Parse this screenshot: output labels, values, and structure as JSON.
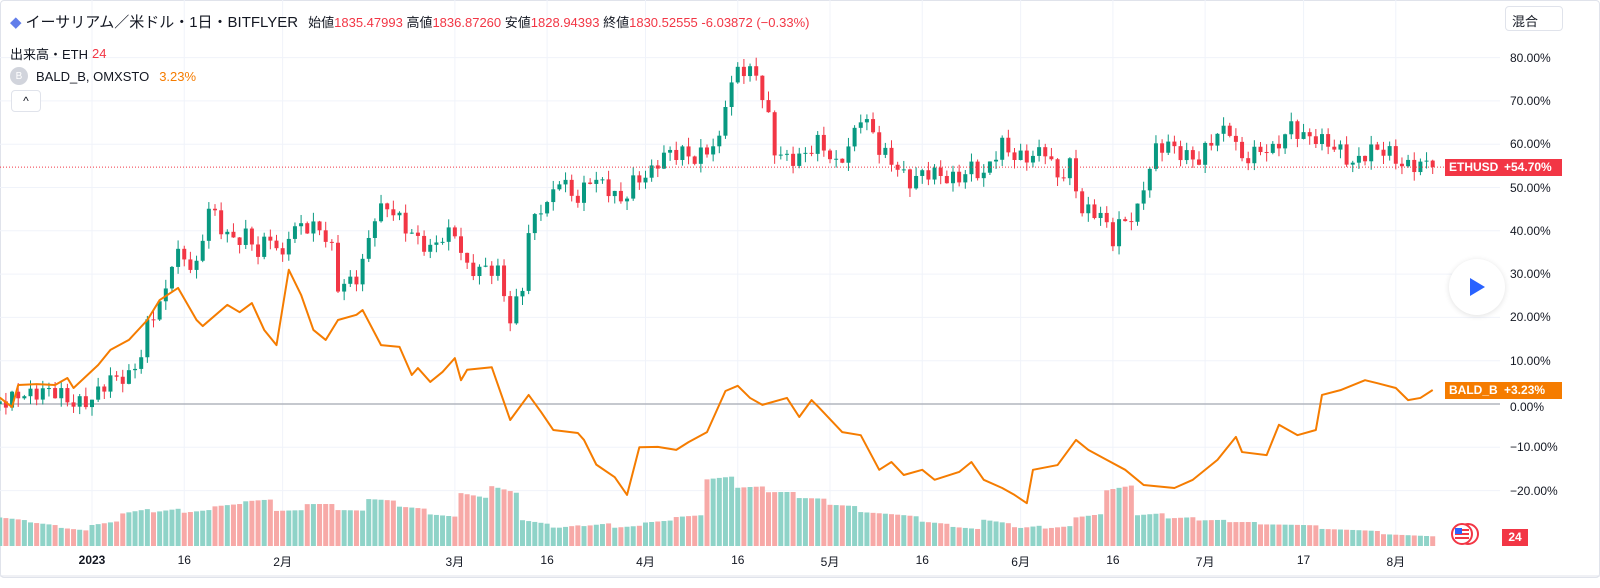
{
  "header": {
    "symbol_title": "イーサリアム／米ドル・1日・BITFLYER",
    "open_label": "始値",
    "open": "1835.47993",
    "high_label": "高値",
    "high": "1836.87260",
    "low_label": "安値",
    "low": "1828.94393",
    "close_label": "終値",
    "close": "1830.52555",
    "change": "-6.03872 (−0.33%)",
    "volume_label": "出来高・ETH",
    "volume_value": "24",
    "compare_badge": "B",
    "compare_symbol": "BALD_B, OMXSTO",
    "compare_value": "3.23%",
    "collapse_icon": "^"
  },
  "toolbar": {
    "mix_label": "混合"
  },
  "tags": {
    "eth_name": "ETHUSD",
    "eth_value": "+54.70%",
    "bald_name": "BALD_B",
    "bald_value": "+3.23%",
    "volume_tag": "24"
  },
  "colors": {
    "up": "#089981",
    "down": "#f23645",
    "compare": "#f57c00",
    "vol_up": "#8fd3c8",
    "vol_down": "#f7a9a7"
  },
  "chart_data": {
    "type": "line",
    "title": "イーサリアム／米ドル・1日・BITFLYER vs BALD_B",
    "ylabel": "%",
    "ylim": [
      -30,
      85
    ],
    "y_ticks": [
      "80.00%",
      "70.00%",
      "60.00%",
      "50.00%",
      "40.00%",
      "30.00%",
      "20.00%",
      "10.00%",
      "0.00%",
      "−10.00%",
      "−20.00%"
    ],
    "x_unit": "days since 2023-01-01",
    "x_ticks": [
      {
        "day": 0,
        "label": "2023"
      },
      {
        "day": 15,
        "label": "16"
      },
      {
        "day": 31,
        "label": "2月"
      },
      {
        "day": 59,
        "label": "3月"
      },
      {
        "day": 74,
        "label": "16"
      },
      {
        "day": 90,
        "label": "4月"
      },
      {
        "day": 105,
        "label": "16"
      },
      {
        "day": 120,
        "label": "5月"
      },
      {
        "day": 135,
        "label": "16"
      },
      {
        "day": 151,
        "label": "6月"
      },
      {
        "day": 166,
        "label": "16"
      },
      {
        "day": 181,
        "label": "7月"
      },
      {
        "day": 197,
        "label": "17"
      },
      {
        "day": 212,
        "label": "8月"
      }
    ],
    "series": [
      {
        "name": "ETHUSD",
        "type": "candlestick",
        "points": [
          [
            -14,
            0
          ],
          [
            -12,
            3
          ],
          [
            -5,
            2
          ],
          [
            -4,
            1
          ],
          [
            0,
            1
          ],
          [
            3,
            5
          ],
          [
            6,
            7
          ],
          [
            8,
            12
          ],
          [
            9,
            18
          ],
          [
            12,
            25
          ],
          [
            13,
            33
          ],
          [
            14,
            35
          ],
          [
            17,
            32
          ],
          [
            19,
            45
          ],
          [
            21,
            40
          ],
          [
            23,
            38
          ],
          [
            25,
            40
          ],
          [
            27,
            35
          ],
          [
            29,
            38
          ],
          [
            31,
            33
          ],
          [
            32,
            40
          ],
          [
            34,
            42
          ],
          [
            37,
            40
          ],
          [
            39,
            35
          ],
          [
            40,
            27
          ],
          [
            43,
            30
          ],
          [
            44,
            33
          ],
          [
            46,
            43
          ],
          [
            48,
            45
          ],
          [
            50,
            43
          ],
          [
            52,
            40
          ],
          [
            55,
            35
          ],
          [
            57,
            38
          ],
          [
            59,
            40
          ],
          [
            61,
            32
          ],
          [
            63,
            31
          ],
          [
            66,
            30
          ],
          [
            67,
            25
          ],
          [
            68,
            20
          ],
          [
            70,
            28
          ],
          [
            71,
            40
          ],
          [
            73,
            45
          ],
          [
            74,
            45
          ],
          [
            76,
            52
          ],
          [
            79,
            48
          ],
          [
            81,
            52
          ],
          [
            83,
            50
          ],
          [
            86,
            47
          ],
          [
            88,
            52
          ],
          [
            91,
            53
          ],
          [
            93,
            57
          ],
          [
            96,
            59
          ],
          [
            98,
            57
          ],
          [
            100,
            58
          ],
          [
            102,
            60
          ],
          [
            103,
            70
          ],
          [
            105,
            78
          ],
          [
            106,
            78
          ],
          [
            108,
            76
          ],
          [
            110,
            65
          ],
          [
            111,
            58
          ],
          [
            113,
            57
          ],
          [
            116,
            58
          ],
          [
            118,
            60
          ],
          [
            121,
            55
          ],
          [
            123,
            60
          ],
          [
            125,
            67
          ],
          [
            127,
            62
          ],
          [
            128,
            58
          ],
          [
            131,
            55
          ],
          [
            133,
            52
          ],
          [
            135,
            53
          ],
          [
            139,
            52
          ],
          [
            141,
            53
          ],
          [
            143,
            55
          ],
          [
            145,
            52
          ],
          [
            148,
            60
          ],
          [
            150,
            58
          ],
          [
            153,
            57
          ],
          [
            155,
            58
          ],
          [
            157,
            52
          ],
          [
            159,
            56
          ],
          [
            161,
            45
          ],
          [
            164,
            43
          ],
          [
            166,
            38
          ],
          [
            167,
            42
          ],
          [
            170,
            45
          ],
          [
            171,
            50
          ],
          [
            173,
            58
          ],
          [
            175,
            60
          ],
          [
            178,
            58
          ],
          [
            180,
            56
          ],
          [
            183,
            62
          ],
          [
            185,
            64
          ],
          [
            187,
            57
          ],
          [
            190,
            58
          ],
          [
            192,
            58
          ],
          [
            195,
            65
          ],
          [
            197,
            62
          ],
          [
            200,
            60
          ],
          [
            203,
            59
          ],
          [
            205,
            56
          ],
          [
            208,
            58
          ],
          [
            211,
            58
          ],
          [
            213,
            56
          ],
          [
            216,
            55
          ],
          [
            218,
            54.7
          ]
        ]
      },
      {
        "name": "BALD_B",
        "type": "line",
        "points": [
          [
            -15,
            1.5
          ],
          [
            -13,
            -0.7
          ],
          [
            -12,
            4.4
          ],
          [
            -9,
            4.6
          ],
          [
            -6,
            4.4
          ],
          [
            -4,
            6
          ],
          [
            -3,
            3.7
          ],
          [
            1,
            9
          ],
          [
            3,
            12.5
          ],
          [
            6,
            14.8
          ],
          [
            9,
            19.4
          ],
          [
            11,
            24
          ],
          [
            14,
            26.8
          ],
          [
            17,
            19.4
          ],
          [
            18,
            18
          ],
          [
            22,
            22.9
          ],
          [
            24,
            21.2
          ],
          [
            26,
            23.3
          ],
          [
            28,
            17.1
          ],
          [
            30,
            13.6
          ],
          [
            32,
            31
          ],
          [
            34,
            25.2
          ],
          [
            36,
            17.1
          ],
          [
            38,
            14.8
          ],
          [
            40,
            19.4
          ],
          [
            43,
            20.6
          ],
          [
            44,
            21.7
          ],
          [
            47,
            13.6
          ],
          [
            50,
            13.2
          ],
          [
            52,
            6.7
          ],
          [
            53,
            8.3
          ],
          [
            55,
            5.1
          ],
          [
            57,
            7.4
          ],
          [
            59,
            10.6
          ],
          [
            60,
            5.5
          ],
          [
            61,
            7.9
          ],
          [
            65,
            8.5
          ],
          [
            68,
            -3.7
          ],
          [
            71,
            2.1
          ],
          [
            73,
            -1.8
          ],
          [
            75,
            -6
          ],
          [
            79,
            -6.7
          ],
          [
            80,
            -8.3
          ],
          [
            82,
            -14
          ],
          [
            85,
            -16.9
          ],
          [
            87,
            -21
          ],
          [
            89,
            -10
          ],
          [
            92,
            -9.9
          ],
          [
            95,
            -10.6
          ],
          [
            97,
            -8.8
          ],
          [
            100,
            -6.5
          ],
          [
            103,
            3
          ],
          [
            105,
            4.2
          ],
          [
            107,
            1.4
          ],
          [
            109,
            -0.2
          ],
          [
            113,
            1.4
          ],
          [
            115,
            -3
          ],
          [
            117,
            0.9
          ],
          [
            118,
            -0.5
          ],
          [
            122,
            -6.5
          ],
          [
            125,
            -7.2
          ],
          [
            128,
            -15.2
          ],
          [
            130,
            -13.4
          ],
          [
            132,
            -16.4
          ],
          [
            135,
            -15.2
          ],
          [
            137,
            -17.5
          ],
          [
            141,
            -15.7
          ],
          [
            143,
            -13.4
          ],
          [
            145,
            -17.5
          ],
          [
            148,
            -19.4
          ],
          [
            150,
            -21
          ],
          [
            152,
            -22.9
          ],
          [
            153,
            -15.2
          ],
          [
            157,
            -14.1
          ],
          [
            160,
            -8.3
          ],
          [
            162,
            -10.6
          ],
          [
            165,
            -12.9
          ],
          [
            168,
            -15.2
          ],
          [
            171,
            -18.7
          ],
          [
            176,
            -19.4
          ],
          [
            179,
            -17.5
          ],
          [
            183,
            -12.9
          ],
          [
            186,
            -7.6
          ],
          [
            187,
            -11.1
          ],
          [
            191,
            -11.8
          ],
          [
            193,
            -4.8
          ],
          [
            196,
            -7.2
          ],
          [
            199,
            -6
          ],
          [
            200,
            2.1
          ],
          [
            203,
            3.2
          ],
          [
            207,
            5.5
          ],
          [
            209,
            4.8
          ],
          [
            212,
            3.7
          ],
          [
            214,
            0.9
          ],
          [
            216,
            1.4
          ],
          [
            218,
            3.23
          ]
        ]
      },
      {
        "name": "出来高・ETH",
        "type": "volume",
        "relative_every_8_days": [
          30,
          28,
          25,
          35,
          45,
          40,
          35,
          38,
          40,
          30,
          35,
          30,
          40,
          35,
          30,
          55,
          70,
          35,
          30,
          28,
          22,
          25,
          28,
          60,
          50,
          45,
          40,
          35,
          30,
          30,
          25,
          22,
          35,
          30,
          25,
          35,
          60,
          30,
          25,
          22,
          20,
          18,
          18,
          15,
          15,
          12
        ]
      }
    ]
  }
}
